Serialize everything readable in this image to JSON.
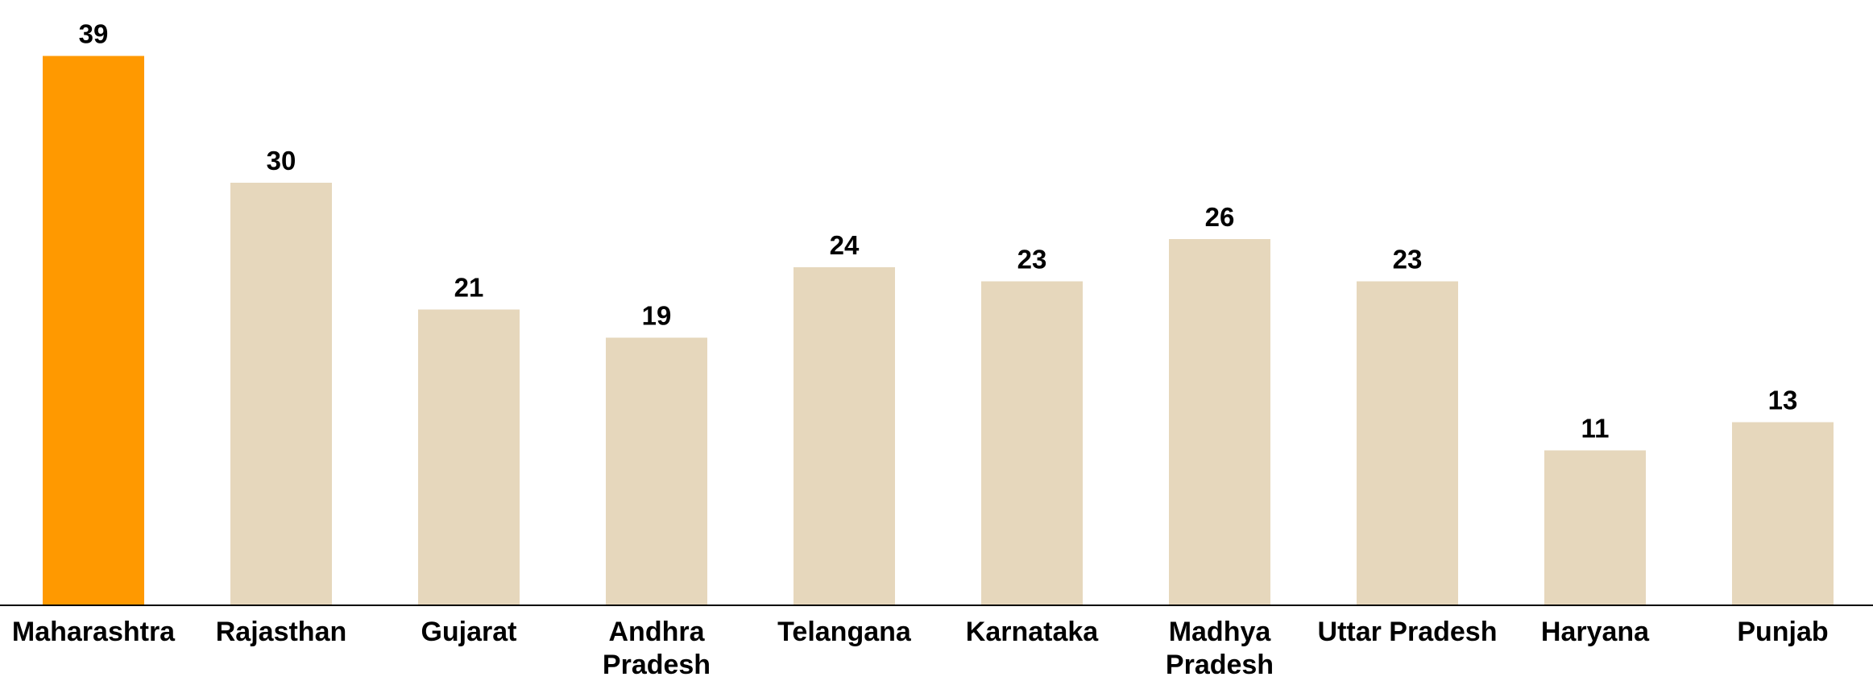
{
  "chart_data": {
    "type": "bar",
    "categories": [
      "Maharashtra",
      "Rajasthan",
      "Gujarat",
      "Andhra Pradesh",
      "Telangana",
      "Karnataka",
      "Madhya Pradesh",
      "Uttar Pradesh",
      "Haryana",
      "Punjab"
    ],
    "values": [
      39,
      30,
      21,
      19,
      24,
      23,
      26,
      23,
      11,
      13
    ],
    "colors": [
      "#ff9900",
      "#e6d7bc",
      "#e6d7bc",
      "#e6d7bc",
      "#e6d7bc",
      "#e6d7bc",
      "#e6d7bc",
      "#e6d7bc",
      "#e6d7bc",
      "#e6d7bc"
    ],
    "ylim": [
      0,
      40
    ]
  }
}
